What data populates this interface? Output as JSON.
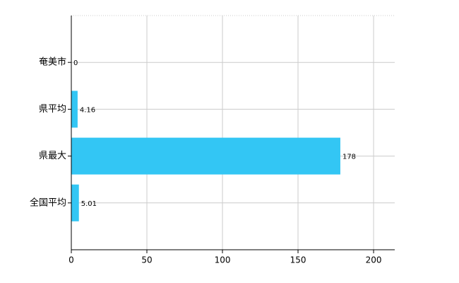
{
  "chart_data": {
    "type": "barh",
    "categories": [
      "奄美市",
      "県平均",
      "県最大",
      "全国平均"
    ],
    "values": [
      0,
      4.16,
      178,
      5.01
    ],
    "color": "#33c6f4",
    "xlim": [
      0,
      214
    ],
    "xticks": [
      0,
      50,
      100,
      150,
      200
    ],
    "grid": true
  }
}
